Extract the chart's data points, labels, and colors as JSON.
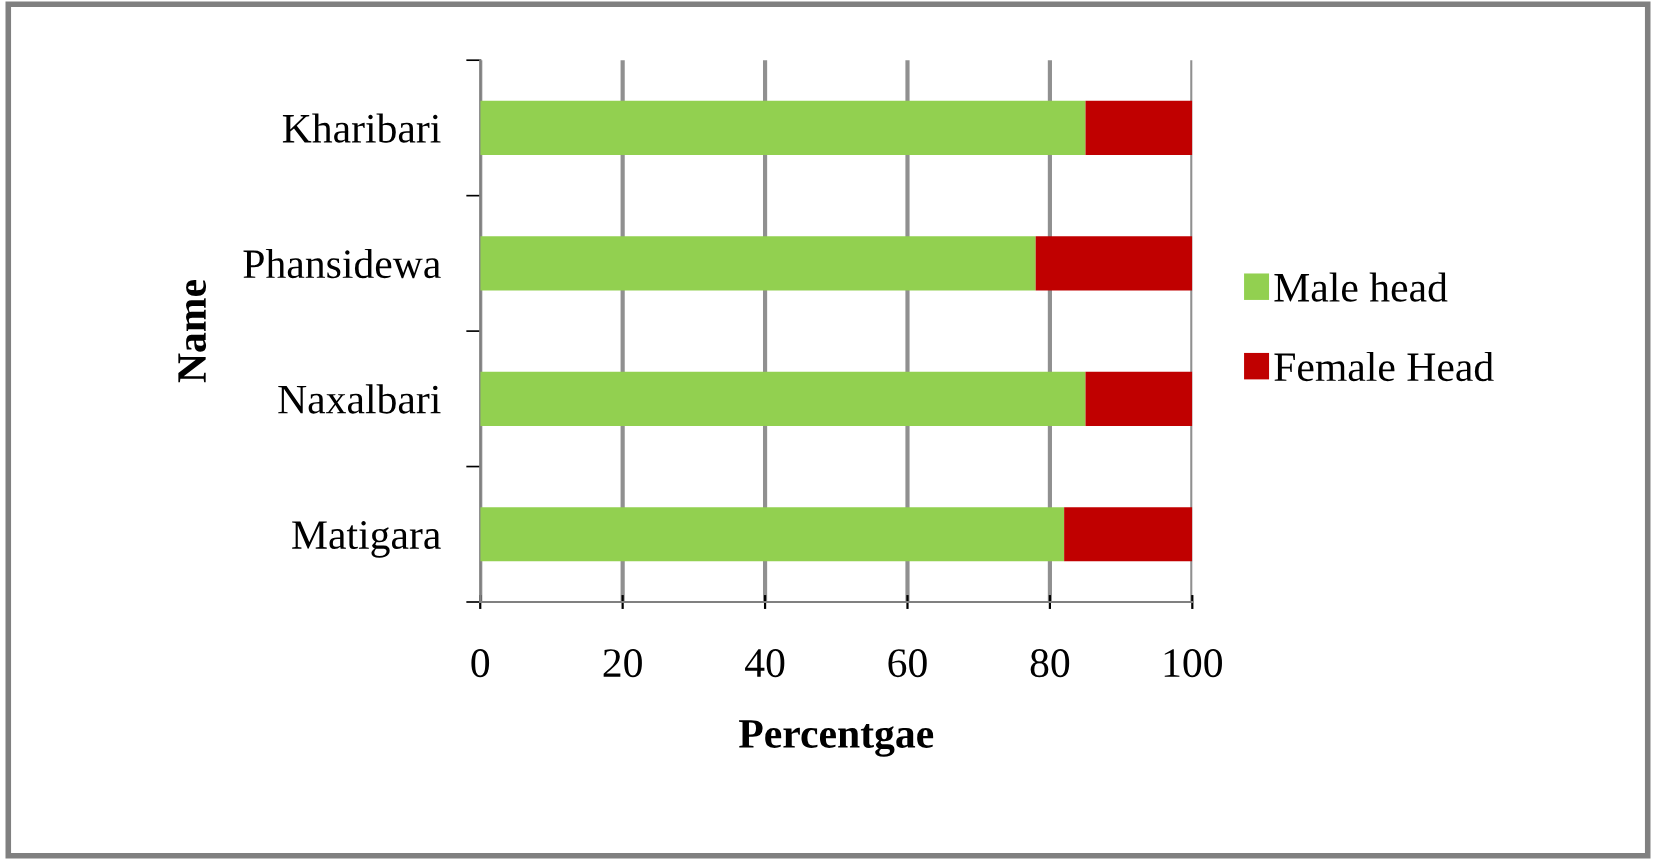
{
  "chart_data": {
    "type": "bar",
    "orientation": "horizontal",
    "stacked": true,
    "xlabel": "Percentgae",
    "ylabel": "Name",
    "categories": [
      "Kharibari",
      "Phansidewa",
      "Naxalbari",
      "Matigara"
    ],
    "series": [
      {
        "name": "Male head",
        "color": "#92d050",
        "values": [
          85,
          78,
          85,
          82
        ]
      },
      {
        "name": "Female Head",
        "color": "#c00000",
        "values": [
          15,
          22,
          15,
          18
        ]
      }
    ],
    "xlim": [
      0,
      100
    ],
    "xticks": [
      0,
      20,
      40,
      60,
      80,
      100
    ],
    "grid": "x",
    "legend": "right"
  }
}
